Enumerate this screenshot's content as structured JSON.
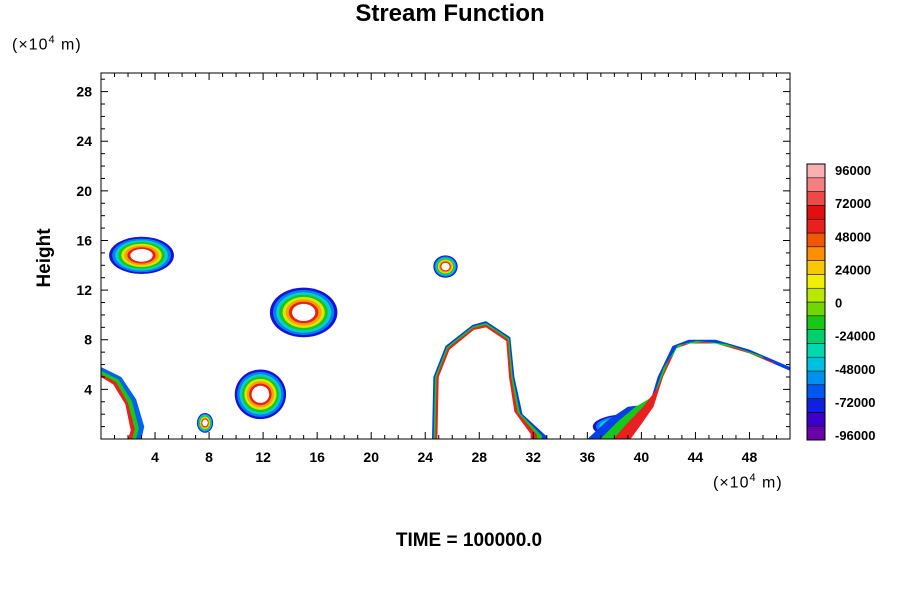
{
  "title": "Stream Function",
  "y_unit": {
    "prefix": "(×10",
    "exp": "4",
    "suffix": " m)"
  },
  "x_unit": {
    "prefix": "(×10",
    "exp": "4",
    "suffix": " m)"
  },
  "time_label": "TIME = 100000.0",
  "colors": {
    "palette": [
      "#6a00a8",
      "#3c00c8",
      "#1020e0",
      "#0058f0",
      "#0090f0",
      "#00c0e0",
      "#00d8b0",
      "#00d070",
      "#18c818",
      "#70d800",
      "#b8e800",
      "#f0f000",
      "#f8c800",
      "#f89000",
      "#f05800",
      "#e82020",
      "#e01010",
      "#ee4848",
      "#f48080",
      "#f8b0b0"
    ]
  },
  "chart_data": {
    "type": "heatmap",
    "title": "Stream Function",
    "xlabel": "",
    "ylabel": "Height",
    "xlim": [
      0,
      51
    ],
    "ylim": [
      0,
      29.5
    ],
    "x_ticks": [
      4,
      8,
      12,
      16,
      20,
      24,
      28,
      32,
      36,
      40,
      44,
      48
    ],
    "y_ticks": [
      4,
      8,
      12,
      16,
      20,
      24,
      28
    ],
    "colorbar": {
      "min": -96000,
      "max": 96000,
      "labels": [
        96000,
        72000,
        48000,
        24000,
        0,
        -24000,
        -48000,
        -72000,
        -96000
      ]
    },
    "features": [
      {
        "kind": "blob",
        "x": 3.0,
        "y": 14.8,
        "rx": 2.4,
        "ry": 1.5,
        "value": 72000
      },
      {
        "kind": "blob",
        "x": 15.0,
        "y": 10.2,
        "rx": 2.5,
        "ry": 2.0,
        "value": 72000
      },
      {
        "kind": "blob",
        "x": 11.8,
        "y": 3.6,
        "rx": 1.9,
        "ry": 2.0,
        "value": 72000
      },
      {
        "kind": "blob",
        "x": 7.7,
        "y": 1.3,
        "rx": 0.6,
        "ry": 0.8,
        "value": 48000
      },
      {
        "kind": "blob",
        "x": 25.5,
        "y": 13.9,
        "rx": 0.9,
        "ry": 0.9,
        "value": 48000
      },
      {
        "kind": "blob",
        "x": 39.0,
        "y": 1.0,
        "rx": 2.6,
        "ry": 1.0,
        "value": 96000
      },
      {
        "kind": "edge",
        "x": 1.5,
        "y": 3.0,
        "value": 72000
      },
      {
        "kind": "dome",
        "x": 28.5,
        "y": 5.0,
        "value": 72000
      },
      {
        "kind": "dome",
        "x": 45.5,
        "y": 4.5,
        "value": 72000
      }
    ]
  }
}
